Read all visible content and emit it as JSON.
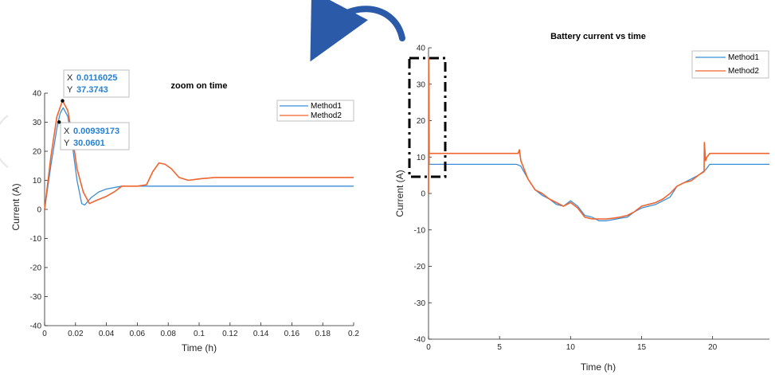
{
  "colors": {
    "method1": "#3b8ed6",
    "method2": "#f0642e"
  },
  "chart_data": [
    {
      "type": "line",
      "title": "zoom on time",
      "xlabel": "Time (h)",
      "ylabel": "Current (A)",
      "xlim": [
        0,
        0.2
      ],
      "ylim": [
        -40,
        40
      ],
      "xticks": [
        "0",
        "0.02",
        "0.04",
        "0.06",
        "0.08",
        "0.1",
        "0.12",
        "0.14",
        "0.16",
        "0.18",
        "0.2"
      ],
      "yticks": [
        "-40",
        "-30",
        "-20",
        "-10",
        "0",
        "10",
        "20",
        "30",
        "40"
      ],
      "legend": [
        "Method1",
        "Method2"
      ],
      "legend_position": "top-right",
      "series": [
        {
          "name": "Method1",
          "x": [
            0,
            0.004,
            0.008,
            0.01,
            0.012,
            0.015,
            0.018,
            0.021,
            0.024,
            0.026,
            0.03,
            0.035,
            0.04,
            0.05,
            0.06,
            0.08,
            0.1,
            0.2
          ],
          "y": [
            0,
            15,
            28,
            33,
            35,
            32,
            22,
            10,
            2,
            1.5,
            4,
            6,
            7,
            8,
            8,
            8,
            8,
            8
          ]
        },
        {
          "name": "Method2",
          "x": [
            0,
            0.004,
            0.008,
            0.0116,
            0.015,
            0.018,
            0.021,
            0.025,
            0.029,
            0.033,
            0.04,
            0.045,
            0.05,
            0.06,
            0.066,
            0.07,
            0.074,
            0.078,
            0.082,
            0.087,
            0.093,
            0.1,
            0.11,
            0.13,
            0.2
          ],
          "y": [
            0,
            18,
            32,
            37.4,
            34,
            25,
            14,
            6,
            2,
            3,
            4.5,
            6,
            8,
            8,
            8.5,
            13,
            16,
            15.5,
            14,
            11,
            10,
            10.5,
            11,
            11,
            11
          ]
        }
      ],
      "datatips": [
        {
          "x_label": "X",
          "x_value": "0.0116025",
          "y_label": "Y",
          "y_value": "37.3743",
          "x": 0.0116025,
          "y": 37.3743
        },
        {
          "x_label": "X",
          "x_value": "0.00939173",
          "y_label": "Y",
          "y_value": "30.0601",
          "x": 0.00939173,
          "y": 30.0601
        }
      ]
    },
    {
      "type": "line",
      "title": "Battery current vs time",
      "xlabel": "Time (h)",
      "ylabel": "Current  (A)",
      "xlim": [
        0,
        24
      ],
      "ylim": [
        -40,
        40
      ],
      "xticks": [
        "0",
        "5",
        "10",
        "15",
        "20"
      ],
      "yticks": [
        "-40",
        "-30",
        "-20",
        "-10",
        "0",
        "10",
        "20",
        "30",
        "40"
      ],
      "legend": [
        "Method1",
        "Method2"
      ],
      "legend_position": "top-right",
      "series": [
        {
          "name": "Method1",
          "x": [
            0,
            0.02,
            0.05,
            0.1,
            6.2,
            6.5,
            7.0,
            7.5,
            8.0,
            8.5,
            9.0,
            9.5,
            10.0,
            10.5,
            11.0,
            11.5,
            12.0,
            12.5,
            13.0,
            13.5,
            14.0,
            14.5,
            15.0,
            15.5,
            16.0,
            16.5,
            17.0,
            17.5,
            18.0,
            18.5,
            19.0,
            19.5,
            19.8,
            24
          ],
          "y": [
            0,
            30,
            8,
            8,
            8,
            7.5,
            4,
            1,
            -0.5,
            -1.5,
            -3,
            -3.5,
            -2,
            -3.5,
            -6,
            -6.5,
            -7.5,
            -7.5,
            -7.2,
            -6.8,
            -6.5,
            -5,
            -4,
            -3.5,
            -3,
            -2,
            -1,
            2,
            3,
            4,
            5,
            6.5,
            8,
            8
          ]
        },
        {
          "name": "Method2",
          "x": [
            0,
            0.01,
            0.03,
            0.05,
            0.1,
            6.3,
            6.4,
            6.5,
            7.0,
            7.5,
            8.0,
            8.5,
            9.0,
            9.5,
            10.0,
            10.5,
            11.0,
            11.5,
            12.0,
            12.5,
            13.0,
            13.5,
            14.0,
            14.5,
            15.0,
            15.5,
            16.0,
            16.5,
            17.0,
            17.5,
            18.0,
            18.5,
            19.0,
            19.4,
            19.42,
            19.5,
            19.6,
            19.8,
            24
          ],
          "y": [
            0,
            37,
            30,
            11,
            11,
            11,
            12,
            9,
            4,
            1,
            0,
            -1.5,
            -2.5,
            -3.5,
            -2.5,
            -4,
            -6.5,
            -7,
            -7,
            -7,
            -6.8,
            -6.5,
            -6,
            -5,
            -3.5,
            -3,
            -2.5,
            -1.5,
            0,
            2,
            3,
            3.5,
            5,
            6,
            14,
            9,
            10,
            11,
            11
          ]
        }
      ]
    }
  ]
}
